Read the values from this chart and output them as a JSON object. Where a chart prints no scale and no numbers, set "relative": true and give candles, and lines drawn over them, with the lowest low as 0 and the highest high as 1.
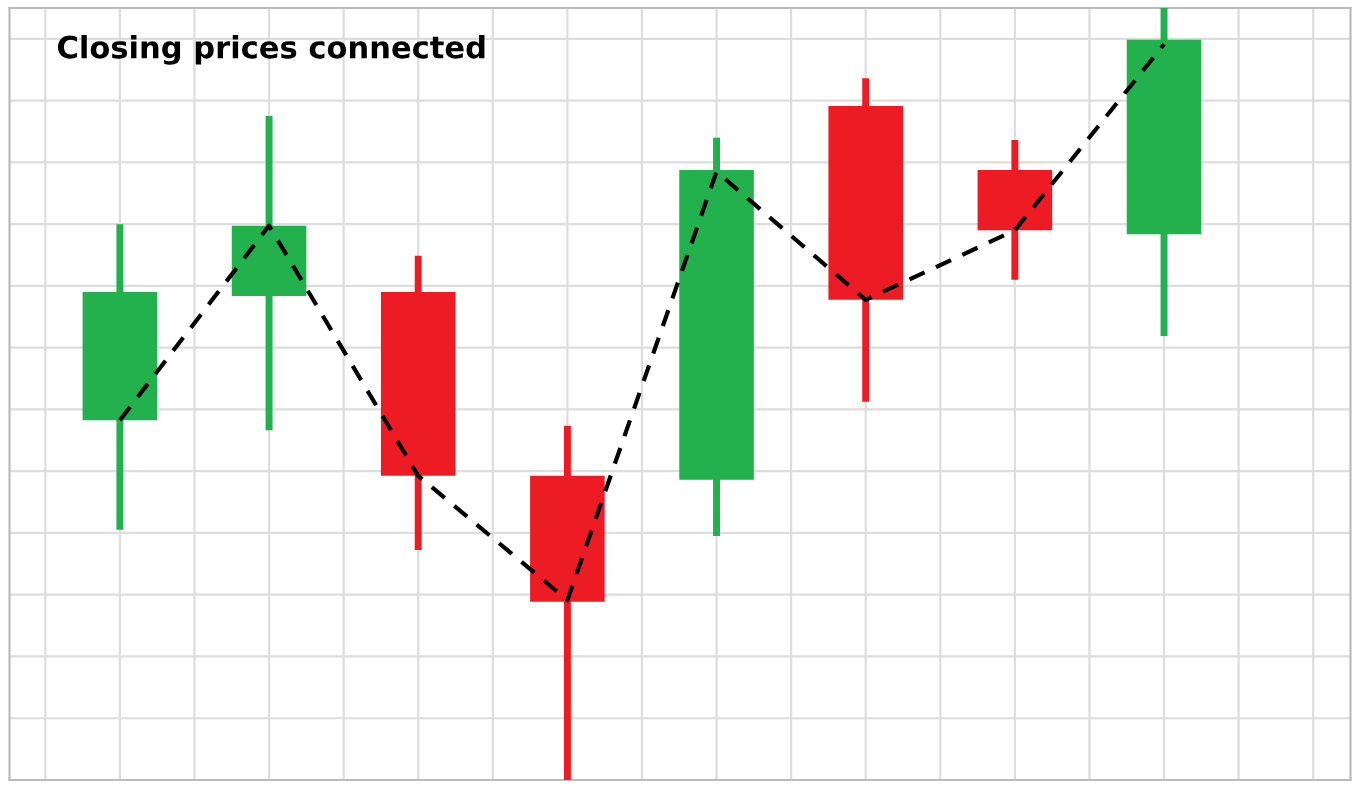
{
  "chart_data": {
    "type": "candlestick",
    "title": "Closing prices connected",
    "relative": true,
    "categories": [
      null,
      null,
      null,
      null,
      null,
      null,
      null,
      null
    ],
    "ohlc": [
      [
        0.466,
        0.72,
        0.324,
        0.632
      ],
      [
        0.627,
        0.86,
        0.453,
        0.718
      ],
      [
        0.632,
        0.679,
        0.298,
        0.394
      ],
      [
        0.394,
        0.459,
        0.0,
        0.231
      ],
      [
        0.389,
        0.832,
        0.316,
        0.79
      ],
      [
        0.873,
        0.909,
        0.49,
        0.622
      ],
      [
        0.79,
        0.829,
        0.648,
        0.712
      ],
      [
        0.707,
        1.0,
        0.575,
        0.959
      ]
    ],
    "colors": [
      "#22b14c",
      "#22b14c",
      "#ed1c24",
      "#ed1c24",
      "#22b14c",
      "#ed1c24",
      "#ed1c24",
      "#22b14c"
    ],
    "series": [
      {
        "type": "line",
        "color": "#000000",
        "line_style": "dashed",
        "marker": "none",
        "values": [
          0.466,
          0.718,
          0.394,
          0.233,
          0.788,
          0.622,
          0.712,
          0.953
        ]
      }
    ],
    "grid": true,
    "tick_labels": false
  }
}
